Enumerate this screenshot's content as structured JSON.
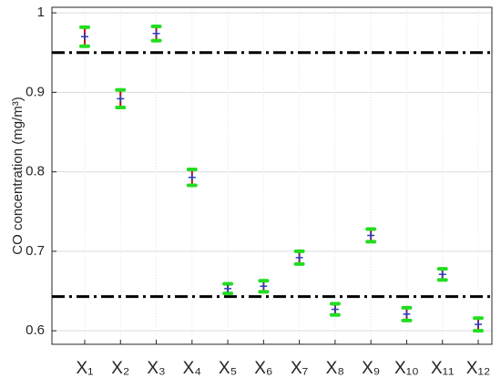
{
  "chart_data": {
    "type": "errorbar",
    "y_label": "CO concentration (mg/m³)",
    "categories": [
      "X₁",
      "X₂",
      "X₃",
      "X₄",
      "X₅",
      "X₆",
      "X₇",
      "X₈",
      "X₉",
      "X₁₀",
      "X₁₁",
      "X₁₂"
    ],
    "values": [
      0.97,
      0.892,
      0.974,
      0.793,
      0.653,
      0.656,
      0.692,
      0.627,
      0.72,
      0.621,
      0.671,
      0.608
    ],
    "errors": [
      0.012,
      0.011,
      0.009,
      0.01,
      0.006,
      0.007,
      0.008,
      0.007,
      0.008,
      0.008,
      0.007,
      0.008
    ],
    "ylim": [
      0.583,
      1.007
    ],
    "yticks": [
      0.6,
      0.7,
      0.8,
      0.9,
      1
    ],
    "hlines": [
      0.95,
      0.643
    ],
    "bar_color": "#d40000",
    "cap_color": "#22dd22",
    "marker_color": "#2b3fbf",
    "hline_color": "#000000",
    "grid": true
  }
}
